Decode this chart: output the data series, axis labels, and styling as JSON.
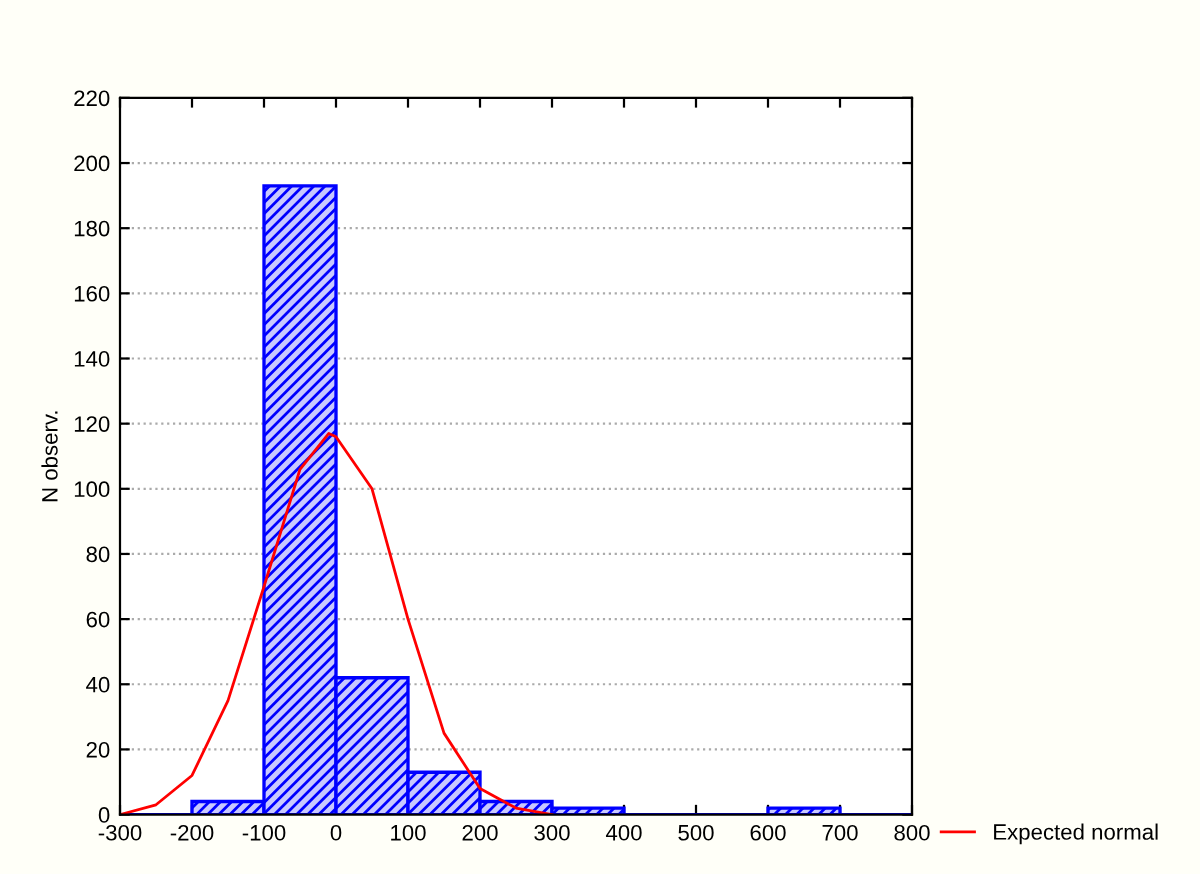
{
  "chart_data": {
    "type": "histogram",
    "ylabel": "N observ.",
    "bins": [
      -300,
      -200,
      -100,
      0,
      100,
      200,
      300,
      400,
      500,
      600,
      700,
      800
    ],
    "values": [
      0,
      4,
      193,
      42,
      13,
      4,
      2,
      0,
      0,
      2,
      0
    ],
    "color": "#0000ff",
    "series": [
      {
        "name": "Expected normal",
        "type": "line",
        "color": "#ff0000",
        "x": [
          -300,
          -250,
          -200,
          -150,
          -100,
          -50,
          -10,
          0,
          50,
          100,
          150,
          200,
          250,
          300
        ],
        "values": [
          0,
          3,
          12,
          35,
          70,
          106,
          117,
          116,
          100,
          60,
          25,
          8,
          2,
          0
        ]
      }
    ],
    "xlim": [
      -300,
      800
    ],
    "xticks": [
      -300,
      -200,
      -100,
      0,
      100,
      200,
      300,
      400,
      500,
      600,
      700,
      800
    ],
    "ylim": [
      0,
      220
    ],
    "yticks": [
      0,
      20,
      40,
      60,
      80,
      100,
      120,
      140,
      160,
      180,
      200,
      220
    ],
    "grid": "y",
    "legend": "bottom right"
  }
}
